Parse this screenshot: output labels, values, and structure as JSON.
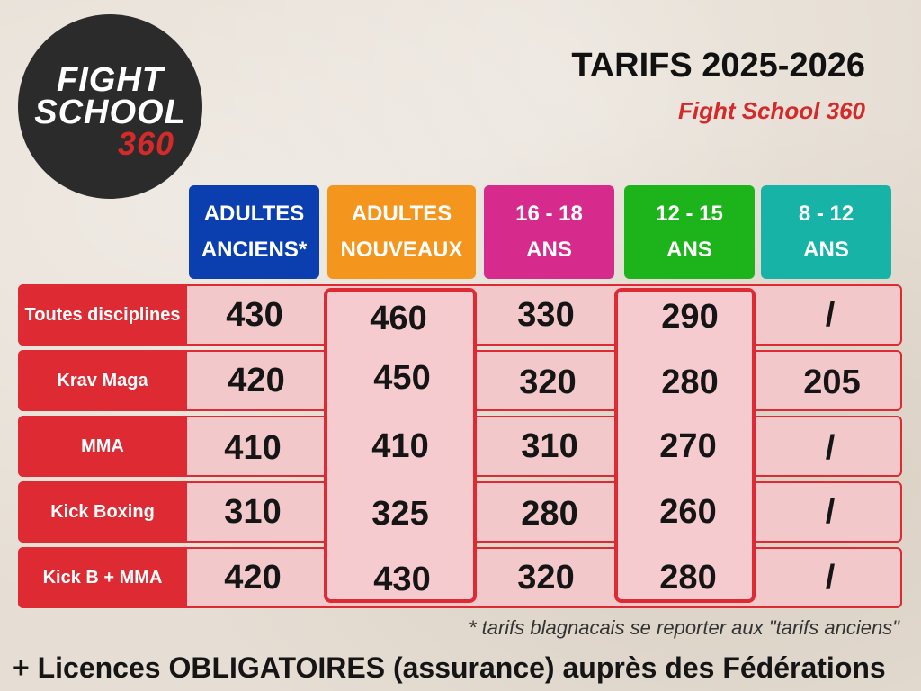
{
  "logo": {
    "line1": "FIGHT",
    "line2": "SCHOOL",
    "line3": "360"
  },
  "header": {
    "title": "TARIFS 2025-2026",
    "subtitle": "Fight School 360"
  },
  "columns": [
    {
      "line1": "ADULTES",
      "line2": "ANCIENS*",
      "color": "#0b3fb0"
    },
    {
      "line1": "ADULTES",
      "line2": "NOUVEAUX",
      "color": "#f4961e"
    },
    {
      "line1": "16 - 18",
      "line2": "ANS",
      "color": "#d62b8d"
    },
    {
      "line1": "12 - 15",
      "line2": "ANS",
      "color": "#1db31b"
    },
    {
      "line1": "8 - 12",
      "line2": "ANS",
      "color": "#17b3a7"
    }
  ],
  "rows": [
    {
      "label": "Toutes disciplines",
      "values": [
        "430",
        "460",
        "330",
        "290",
        "/"
      ]
    },
    {
      "label": "Krav Maga",
      "values": [
        "420",
        "450",
        "320",
        "280",
        "205"
      ]
    },
    {
      "label": "MMA",
      "values": [
        "410",
        "410",
        "310",
        "270",
        "/"
      ]
    },
    {
      "label": "Kick Boxing",
      "values": [
        "310",
        "325",
        "280",
        "260",
        "/"
      ]
    },
    {
      "label": "Kick B + MMA",
      "values": [
        "420",
        "430",
        "320",
        "280",
        "/"
      ]
    }
  ],
  "footnote": "* tarifs blagnacais se reporter aux \"tarifs anciens\"",
  "footer": "+ Licences OBLIGATOIRES (assurance) auprès des Fédérations",
  "colors": {
    "accent_red": "#dd2a33",
    "row_bg": "#f2c8cb"
  }
}
